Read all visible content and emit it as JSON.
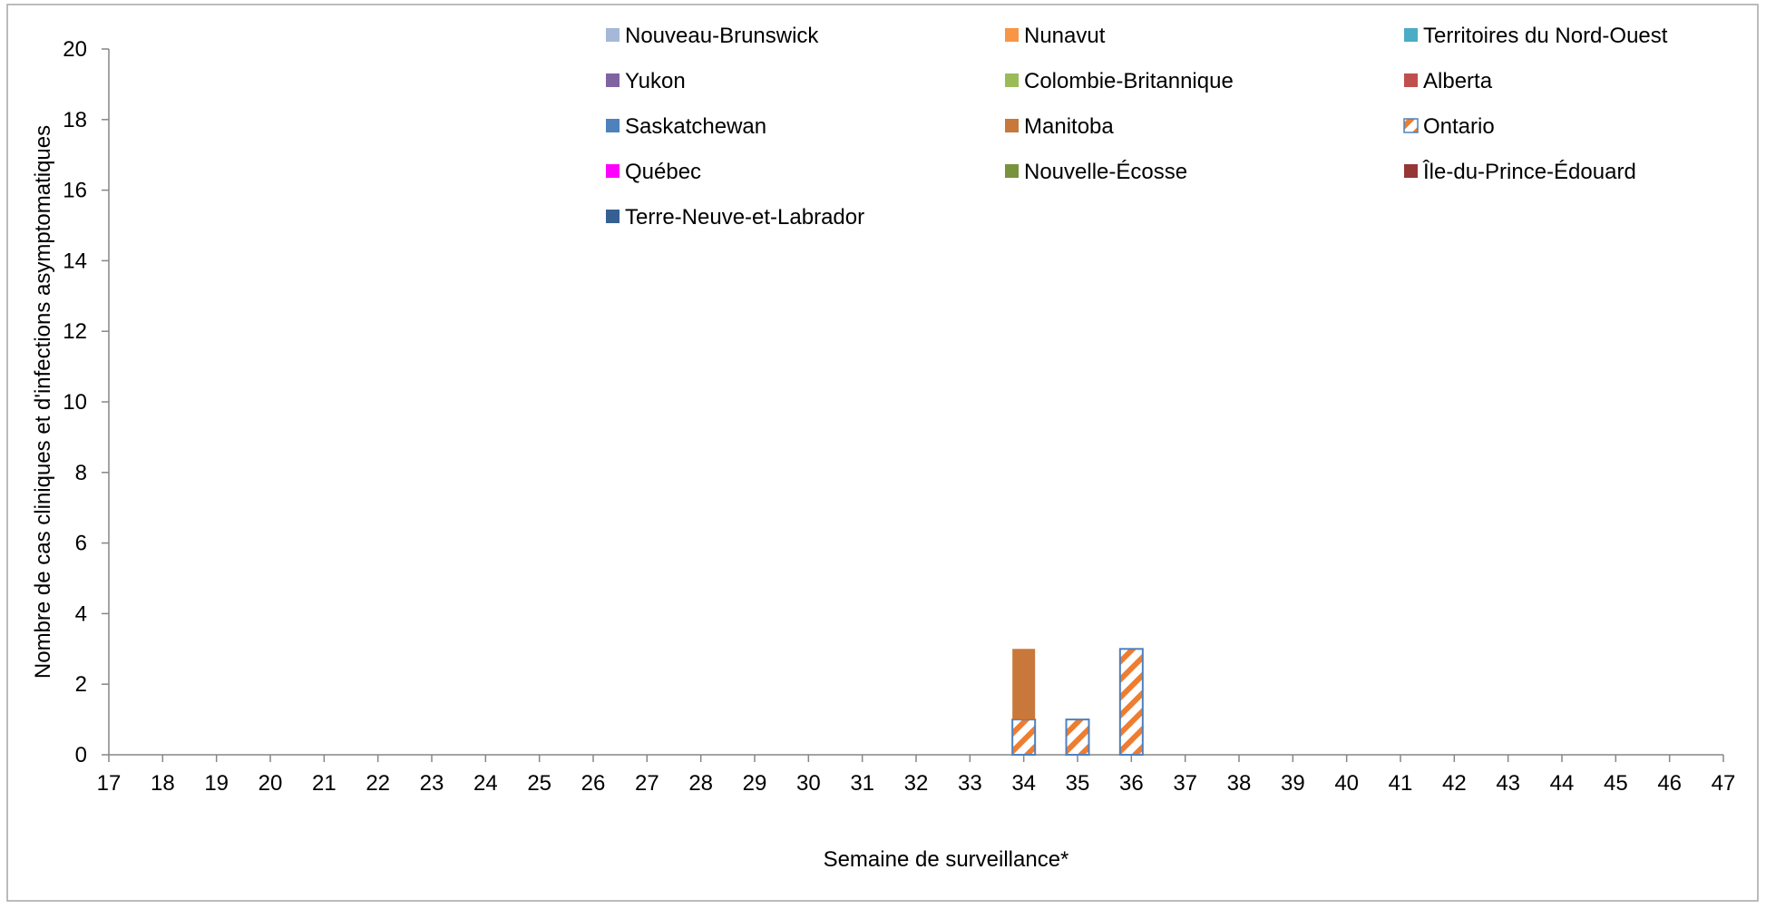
{
  "chart_data": {
    "type": "bar",
    "stacked": true,
    "x_tick_labels": [
      "17",
      "18",
      "19",
      "20",
      "21",
      "22",
      "23",
      "24",
      "25",
      "26",
      "27",
      "28",
      "29",
      "30",
      "31",
      "32",
      "33",
      "34",
      "35",
      "36",
      "37",
      "38",
      "39",
      "40",
      "41",
      "42",
      "43",
      "44",
      "45",
      "46",
      "47"
    ],
    "y_tick_labels": [
      "0",
      "2",
      "4",
      "6",
      "8",
      "10",
      "12",
      "14",
      "16",
      "18",
      "20"
    ],
    "ylim": [
      0,
      20
    ],
    "xlabel": "Semaine de surveillance*",
    "ylabel": "Nombre de cas cliniques et d'infections asymptomatiques",
    "grid": false,
    "legend_position": "top",
    "legend": [
      {
        "name": "Nouveau-Brunswick",
        "color": "#a5b8d9",
        "pattern": "solid"
      },
      {
        "name": "Nunavut",
        "color": "#f79646",
        "pattern": "solid"
      },
      {
        "name": "Territoires du Nord-Ouest",
        "color": "#4bacc6",
        "pattern": "solid"
      },
      {
        "name": "Yukon",
        "color": "#8064a2",
        "pattern": "solid"
      },
      {
        "name": "Colombie-Britannique",
        "color": "#9bbb59",
        "pattern": "solid"
      },
      {
        "name": "Alberta",
        "color": "#c0504d",
        "pattern": "solid"
      },
      {
        "name": "Saskatchewan",
        "color": "#4f81bd",
        "pattern": "solid"
      },
      {
        "name": "Manitoba",
        "color": "#c8783a",
        "pattern": "solid"
      },
      {
        "name": "Ontario",
        "color": "#ed7d31",
        "pattern": "hatch",
        "border": "#4f81bd"
      },
      {
        "name": "Québec",
        "color": "#ff00ff",
        "pattern": "solid"
      },
      {
        "name": "Nouvelle-Écosse",
        "color": "#77933c",
        "pattern": "solid"
      },
      {
        "name": "Île-du-Prince-Édouard",
        "color": "#953735",
        "pattern": "solid"
      },
      {
        "name": "Terre-Neuve-et-Labrador",
        "color": "#366092",
        "pattern": "solid"
      }
    ],
    "series": [
      {
        "name": "Ontario",
        "x": [
          34,
          35,
          36
        ],
        "values": [
          1,
          1,
          3
        ]
      },
      {
        "name": "Manitoba",
        "x": [
          34
        ],
        "values": [
          2
        ]
      }
    ]
  }
}
